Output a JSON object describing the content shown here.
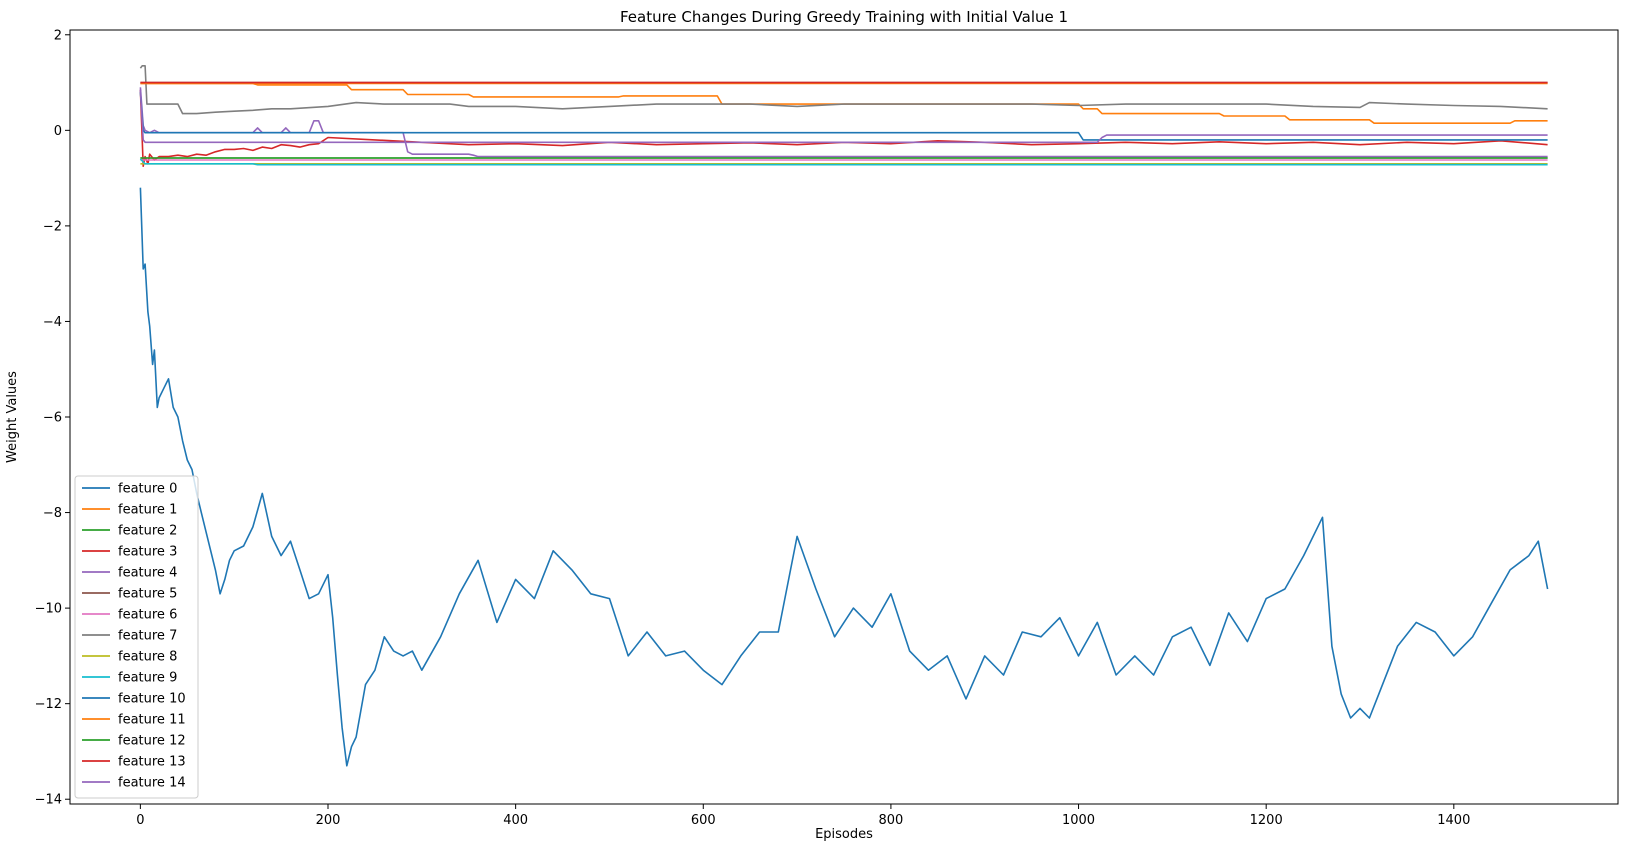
{
  "chart_data": {
    "type": "line",
    "title": "Feature Changes During Greedy Training with Initial Value 1",
    "xlabel": "Episodes",
    "ylabel": "Weight Values",
    "xlim": [
      -75,
      1575
    ],
    "ylim": [
      -14.1,
      2.1
    ],
    "xticks": [
      0,
      200,
      400,
      600,
      800,
      1000,
      1200,
      1400
    ],
    "yticks": [
      2,
      0,
      -2,
      -4,
      -6,
      -8,
      -10,
      -12,
      -14
    ],
    "ytick_labels": [
      "2",
      "0",
      "−2",
      "−4",
      "−6",
      "−8",
      "−10",
      "−12",
      "−14"
    ],
    "grid": false,
    "legend_position": "lower-left",
    "series": [
      {
        "name": "feature 0",
        "color": "#1f77b4",
        "x": [
          0,
          3,
          5,
          8,
          10,
          13,
          15,
          18,
          20,
          25,
          30,
          35,
          40,
          45,
          50,
          55,
          60,
          65,
          70,
          75,
          80,
          85,
          90,
          95,
          100,
          110,
          120,
          130,
          140,
          150,
          160,
          170,
          180,
          190,
          200,
          205,
          210,
          215,
          220,
          225,
          230,
          240,
          250,
          260,
          270,
          280,
          290,
          300,
          320,
          340,
          360,
          380,
          400,
          420,
          440,
          460,
          480,
          500,
          520,
          540,
          560,
          580,
          600,
          620,
          640,
          660,
          680,
          700,
          720,
          740,
          760,
          780,
          800,
          820,
          840,
          860,
          880,
          900,
          920,
          940,
          960,
          980,
          1000,
          1020,
          1040,
          1060,
          1080,
          1100,
          1120,
          1140,
          1160,
          1180,
          1200,
          1220,
          1240,
          1260,
          1270,
          1280,
          1290,
          1300,
          1310,
          1320,
          1340,
          1360,
          1380,
          1400,
          1420,
          1440,
          1460,
          1480,
          1490,
          1500
        ],
        "y": [
          -1.2,
          -2.9,
          -2.8,
          -3.8,
          -4.1,
          -4.9,
          -4.6,
          -5.8,
          -5.6,
          -5.4,
          -5.2,
          -5.8,
          -6.0,
          -6.5,
          -6.9,
          -7.1,
          -7.6,
          -8.0,
          -8.4,
          -8.8,
          -9.2,
          -9.7,
          -9.4,
          -9.0,
          -8.8,
          -8.7,
          -8.3,
          -7.6,
          -8.5,
          -8.9,
          -8.6,
          -9.2,
          -9.8,
          -9.7,
          -9.3,
          -10.2,
          -11.4,
          -12.5,
          -13.3,
          -12.9,
          -12.7,
          -11.6,
          -11.3,
          -10.6,
          -10.9,
          -11.0,
          -10.9,
          -11.3,
          -10.6,
          -9.7,
          -9.0,
          -10.3,
          -9.4,
          -9.8,
          -8.8,
          -9.2,
          -9.7,
          -9.8,
          -11.0,
          -10.5,
          -11.0,
          -10.9,
          -11.3,
          -11.6,
          -11.0,
          -10.5,
          -10.5,
          -8.5,
          -9.6,
          -10.6,
          -10.0,
          -10.4,
          -9.7,
          -10.9,
          -11.3,
          -11.0,
          -11.9,
          -11.0,
          -11.4,
          -10.5,
          -10.6,
          -10.2,
          -11.0,
          -10.3,
          -11.4,
          -11.0,
          -11.4,
          -10.6,
          -10.4,
          -11.2,
          -10.1,
          -10.7,
          -9.8,
          -9.6,
          -8.9,
          -8.1,
          -10.8,
          -11.8,
          -12.3,
          -12.1,
          -12.3,
          -11.8,
          -10.8,
          -10.3,
          -10.5,
          -11.0,
          -10.6,
          -9.9,
          -9.2,
          -8.9,
          -8.6,
          -9.6
        ]
      },
      {
        "name": "feature 1",
        "color": "#ff7f0e",
        "x": [
          0,
          120,
          125,
          220,
          225,
          280,
          285,
          350,
          355,
          510,
          515,
          615,
          620,
          760,
          765,
          1000,
          1005,
          1020,
          1025,
          1150,
          1155,
          1220,
          1225,
          1310,
          1315,
          1460,
          1465,
          1500
        ],
        "y": [
          0.98,
          0.98,
          0.95,
          0.95,
          0.85,
          0.85,
          0.75,
          0.75,
          0.7,
          0.7,
          0.72,
          0.72,
          0.55,
          0.55,
          0.55,
          0.55,
          0.45,
          0.45,
          0.35,
          0.35,
          0.3,
          0.3,
          0.22,
          0.22,
          0.15,
          0.15,
          0.2,
          0.2
        ]
      },
      {
        "name": "feature 2",
        "color": "#2ca02c",
        "x": [
          0,
          1500
        ],
        "y": [
          -0.58,
          -0.58
        ]
      },
      {
        "name": "feature 3",
        "color": "#d62728",
        "x": [
          0,
          3,
          5,
          8,
          10,
          15,
          20,
          30,
          40,
          50,
          60,
          70,
          80,
          90,
          100,
          110,
          120,
          130,
          140,
          150,
          160,
          170,
          180,
          190,
          200,
          250,
          300,
          350,
          400,
          450,
          500,
          550,
          600,
          650,
          700,
          750,
          800,
          850,
          900,
          950,
          1000,
          1050,
          1100,
          1150,
          1200,
          1250,
          1300,
          1350,
          1400,
          1450,
          1500
        ],
        "y": [
          0.85,
          -0.75,
          -0.55,
          -0.7,
          -0.5,
          -0.62,
          -0.55,
          -0.55,
          -0.52,
          -0.55,
          -0.5,
          -0.52,
          -0.45,
          -0.4,
          -0.4,
          -0.38,
          -0.42,
          -0.35,
          -0.38,
          -0.3,
          -0.32,
          -0.35,
          -0.3,
          -0.28,
          -0.15,
          -0.2,
          -0.25,
          -0.3,
          -0.28,
          -0.32,
          -0.25,
          -0.3,
          -0.28,
          -0.26,
          -0.3,
          -0.25,
          -0.28,
          -0.22,
          -0.25,
          -0.3,
          -0.28,
          -0.25,
          -0.28,
          -0.24,
          -0.28,
          -0.25,
          -0.3,
          -0.25,
          -0.28,
          -0.22,
          -0.3
        ]
      },
      {
        "name": "feature 4",
        "color": "#9467bd",
        "x": [
          0,
          3,
          5,
          10,
          15,
          20,
          25,
          30,
          120,
          125,
          130,
          150,
          155,
          160,
          180,
          185,
          190,
          195,
          200,
          280,
          285,
          290,
          350,
          355,
          360,
          600,
          605,
          610,
          1500
        ],
        "y": [
          0.9,
          0.1,
          0.0,
          -0.05,
          0.0,
          -0.05,
          -0.05,
          -0.05,
          -0.05,
          0.05,
          -0.05,
          -0.05,
          0.05,
          -0.05,
          -0.05,
          0.2,
          0.2,
          -0.05,
          -0.05,
          -0.05,
          -0.45,
          -0.5,
          -0.5,
          -0.52,
          -0.55,
          -0.55,
          -0.55,
          -0.55,
          -0.55
        ]
      },
      {
        "name": "feature 5",
        "color": "#8c564b",
        "x": [
          0,
          1500
        ],
        "y": [
          1.0,
          1.0
        ]
      },
      {
        "name": "feature 6",
        "color": "#e377c2",
        "x": [
          0,
          1500
        ],
        "y": [
          -0.62,
          -0.62
        ]
      },
      {
        "name": "feature 7",
        "color": "#7f7f7f",
        "x": [
          0,
          2,
          5,
          7,
          10,
          40,
          45,
          60,
          80,
          100,
          120,
          140,
          160,
          200,
          230,
          260,
          300,
          330,
          350,
          400,
          450,
          500,
          550,
          600,
          650,
          700,
          750,
          800,
          850,
          900,
          950,
          1000,
          1050,
          1100,
          1150,
          1200,
          1250,
          1300,
          1310,
          1350,
          1400,
          1450,
          1500
        ],
        "y": [
          1.3,
          1.35,
          1.35,
          0.55,
          0.55,
          0.55,
          0.35,
          0.35,
          0.38,
          0.4,
          0.42,
          0.45,
          0.45,
          0.5,
          0.58,
          0.55,
          0.55,
          0.55,
          0.5,
          0.5,
          0.45,
          0.5,
          0.55,
          0.55,
          0.55,
          0.5,
          0.55,
          0.55,
          0.55,
          0.55,
          0.55,
          0.52,
          0.55,
          0.55,
          0.55,
          0.55,
          0.5,
          0.48,
          0.58,
          0.55,
          0.52,
          0.5,
          0.45
        ]
      },
      {
        "name": "feature 8",
        "color": "#bcbd22",
        "x": [
          0,
          1500
        ],
        "y": [
          -0.7,
          -0.7
        ]
      },
      {
        "name": "feature 9",
        "color": "#17becf",
        "x": [
          0,
          5,
          10,
          120,
          125,
          130,
          1500
        ],
        "y": [
          -0.6,
          -0.7,
          -0.7,
          -0.7,
          -0.72,
          -0.72,
          -0.72
        ]
      },
      {
        "name": "feature 10",
        "color": "#1f77b4",
        "x": [
          0,
          3,
          5,
          10,
          1000,
          1005,
          1010,
          1500
        ],
        "y": [
          0.8,
          0.0,
          -0.05,
          -0.05,
          -0.05,
          -0.2,
          -0.2,
          -0.2
        ]
      },
      {
        "name": "feature 11",
        "color": "#ff7f0e",
        "x": [
          0,
          1500
        ],
        "y": [
          0.98,
          0.98
        ]
      },
      {
        "name": "feature 12",
        "color": "#2ca02c",
        "x": [
          0,
          1500
        ],
        "y": [
          -0.58,
          -0.58
        ]
      },
      {
        "name": "feature 13",
        "color": "#d62728",
        "x": [
          0,
          1500
        ],
        "y": [
          1.0,
          1.0
        ]
      },
      {
        "name": "feature 14",
        "color": "#9467bd",
        "x": [
          0,
          3,
          5,
          10,
          1020,
          1025,
          1030,
          1500
        ],
        "y": [
          0.85,
          -0.2,
          -0.25,
          -0.25,
          -0.25,
          -0.15,
          -0.1,
          -0.1
        ]
      }
    ]
  }
}
